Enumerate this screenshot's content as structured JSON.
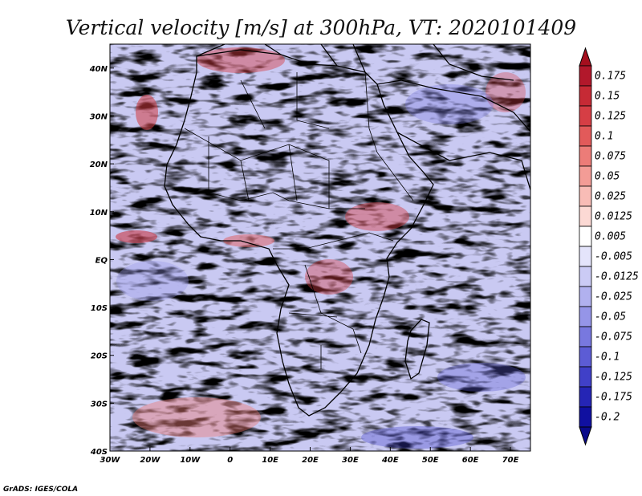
{
  "chart_data": {
    "type": "heatmap",
    "title": "Vertical velocity [m/s] at 300hPa, VT: 2020101409",
    "xlabel": "",
    "ylabel": "",
    "xlim": [
      -30,
      75
    ],
    "ylim": [
      -40,
      45
    ],
    "x_ticks": [
      {
        "value": -30,
        "label": "30W"
      },
      {
        "value": -20,
        "label": "20W"
      },
      {
        "value": -10,
        "label": "10W"
      },
      {
        "value": 0,
        "label": "0"
      },
      {
        "value": 10,
        "label": "10E"
      },
      {
        "value": 20,
        "label": "20E"
      },
      {
        "value": 30,
        "label": "30E"
      },
      {
        "value": 40,
        "label": "40E"
      },
      {
        "value": 50,
        "label": "50E"
      },
      {
        "value": 60,
        "label": "60E"
      },
      {
        "value": 70,
        "label": "70E"
      }
    ],
    "y_ticks": [
      {
        "value": 40,
        "label": "40N"
      },
      {
        "value": 30,
        "label": "30N"
      },
      {
        "value": 20,
        "label": "20N"
      },
      {
        "value": 10,
        "label": "10N"
      },
      {
        "value": 0,
        "label": "EQ"
      },
      {
        "value": -10,
        "label": "10S"
      },
      {
        "value": -20,
        "label": "20S"
      },
      {
        "value": -30,
        "label": "30S"
      },
      {
        "value": -40,
        "label": "40S"
      }
    ],
    "colorbar": {
      "levels": [
        "0.175",
        "0.15",
        "0.125",
        "0.1",
        "0.075",
        "0.05",
        "0.025",
        "0.0125",
        "0.005",
        "-0.005",
        "-0.0125",
        "-0.025",
        "-0.05",
        "-0.075",
        "-0.1",
        "-0.125",
        "-0.175",
        "-0.2"
      ],
      "colors": [
        "#b2182b",
        "#c62a35",
        "#d63e45",
        "#e25a5a",
        "#ec7c78",
        "#f39c96",
        "#f8bcb6",
        "#fcd9d4",
        "#ffffff",
        "#e4e4fb",
        "#cbcbf5",
        "#b1b1ef",
        "#9595e8",
        "#7878df",
        "#5c5cd5",
        "#4040c8",
        "#2525b5",
        "#1010a0"
      ],
      "colors_extend": {
        "max": "#a50f1e",
        "min": "#0a0a8a"
      }
    }
  },
  "footer": "GrADS: IGES/COLA"
}
